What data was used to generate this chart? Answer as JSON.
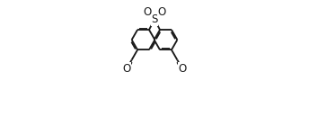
{
  "bg_color": "#ffffff",
  "line_color": "#1a1a1a",
  "lw": 1.35,
  "figsize": [
    3.44,
    1.4
  ],
  "dpi": 100,
  "S_label": "S",
  "O_label": "O",
  "label_fontsize": 8.5,
  "xlim": [
    0.0,
    1.0
  ],
  "ylim": [
    0.0,
    1.0
  ]
}
